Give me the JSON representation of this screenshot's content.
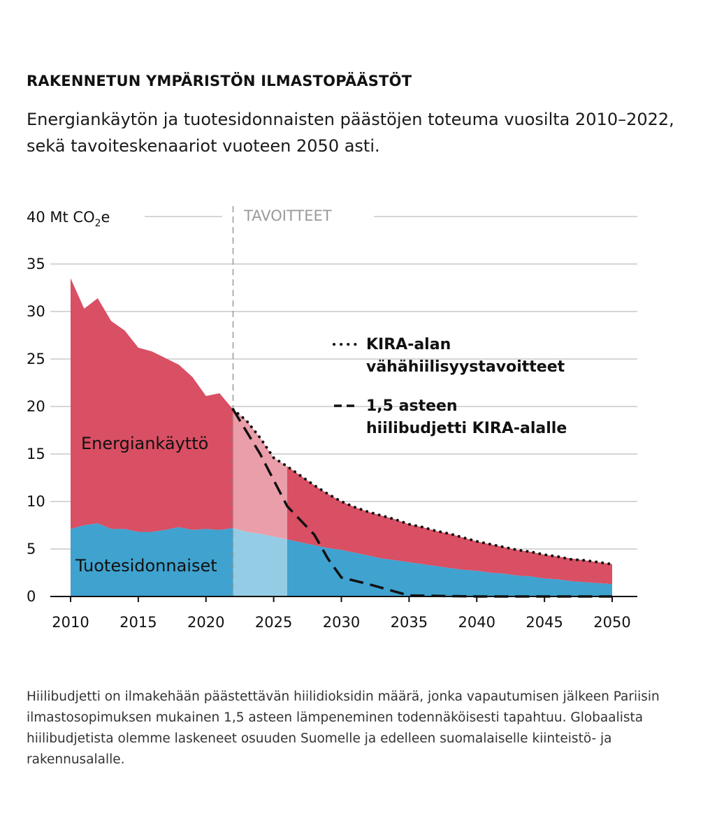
{
  "header": {
    "title": "RAKENNETUN YMPÄRISTÖN ILMASTOPÄÄSTÖT",
    "subtitle": "Energiankäytön ja tuotesidonnaisten päästöjen toteuma vuosilta 2010–2022, sekä tavoiteskenaariot vuoteen 2050 asti."
  },
  "caption": "Hiilibudjetti on ilmakehään päästettävän hiilidioksidin määrä, jonka vapautumisen jälkeen Pariisin ilmastosopimuksen mukainen 1,5 asteen lämpeneminen todennäköisesti tapahtuu. Globaalista hiilibudjetista olemme laskeneet osuuden Suomelle ja edelleen suomalaiselle kiinteistö- ja rakennusalalle.",
  "chart_data": {
    "type": "area",
    "y_unit_label": {
      "main": "40 Mt CO",
      "sub": "2",
      "tail": "e"
    },
    "ylim": [
      0,
      40
    ],
    "yticks": [
      0,
      5,
      10,
      15,
      20,
      25,
      30,
      35,
      40
    ],
    "xlim": [
      2010,
      2050
    ],
    "xticks": [
      2010,
      2015,
      2020,
      2025,
      2030,
      2035,
      2040,
      2045,
      2050
    ],
    "grid": true,
    "target_divider_year": 2022,
    "target_label": "TAVOITTEET",
    "area_labels": {
      "top": "Energiankäyttö",
      "bottom": "Tuotesidonnaiset"
    },
    "colors": {
      "energy": "#d94f63",
      "product": "#3fa2cf",
      "grid": "#c8c8c8",
      "line": "#111111"
    },
    "x": [
      2010,
      2011,
      2012,
      2013,
      2014,
      2015,
      2016,
      2017,
      2018,
      2019,
      2020,
      2021,
      2022,
      2023,
      2024,
      2025,
      2026,
      2027,
      2028,
      2029,
      2030,
      2031,
      2032,
      2033,
      2034,
      2035,
      2036,
      2037,
      2038,
      2039,
      2040,
      2041,
      2042,
      2043,
      2044,
      2045,
      2046,
      2047,
      2048,
      2049,
      2050
    ],
    "series": [
      {
        "name": "Tuotesidonnaiset",
        "values": [
          7.1,
          7.5,
          7.7,
          7.1,
          7.1,
          6.8,
          6.8,
          7.0,
          7.3,
          7.0,
          7.1,
          7.0,
          7.2,
          6.8,
          6.6,
          6.3,
          6.0,
          5.7,
          5.4,
          5.1,
          4.9,
          4.6,
          4.3,
          4.0,
          3.8,
          3.6,
          3.4,
          3.2,
          3.0,
          2.8,
          2.7,
          2.5,
          2.4,
          2.2,
          2.1,
          1.9,
          1.8,
          1.6,
          1.5,
          1.4,
          1.3
        ]
      },
      {
        "name": "Energiankäyttö",
        "values": [
          26.4,
          22.8,
          23.7,
          21.9,
          20.9,
          19.4,
          19.0,
          18.1,
          17.1,
          16.1,
          14.0,
          14.4,
          12.5,
          11.7,
          10.1,
          8.3,
          7.7,
          7.0,
          6.3,
          5.7,
          5.1,
          4.8,
          4.6,
          4.5,
          4.3,
          4.0,
          3.9,
          3.7,
          3.6,
          3.4,
          3.1,
          3.0,
          2.8,
          2.7,
          2.6,
          2.5,
          2.4,
          2.4,
          2.3,
          2.2,
          2.1
        ]
      }
    ],
    "lines": [
      {
        "name": "KIRA-alan vähähiilisyystavoitteet",
        "style": "dotted",
        "x": [
          2022,
          2023,
          2024,
          2025,
          2026,
          2027,
          2028,
          2029,
          2030,
          2031,
          2032,
          2033,
          2034,
          2035,
          2036,
          2037,
          2038,
          2039,
          2040,
          2041,
          2042,
          2043,
          2044,
          2045,
          2046,
          2047,
          2048,
          2049,
          2050
        ],
        "values": [
          19.7,
          18.5,
          16.7,
          14.6,
          13.7,
          12.7,
          11.7,
          10.8,
          10.0,
          9.4,
          8.9,
          8.5,
          8.1,
          7.6,
          7.3,
          6.9,
          6.6,
          6.2,
          5.8,
          5.5,
          5.2,
          4.9,
          4.7,
          4.4,
          4.2,
          3.9,
          3.8,
          3.6,
          3.4
        ]
      },
      {
        "name": "1,5 asteen hiilibudjetti KIRA-alalle",
        "style": "dashed",
        "x": [
          2022,
          2024,
          2026,
          2028,
          2029,
          2030,
          2032,
          2035,
          2040,
          2045,
          2050
        ],
        "values": [
          19.7,
          15.0,
          9.5,
          6.5,
          4.0,
          2.0,
          1.3,
          0.1,
          0.0,
          0.0,
          0.0
        ]
      }
    ],
    "legend": [
      {
        "line1": "KIRA-alan",
        "line2": "vähähiilisyystavoitteet",
        "style": "dotted"
      },
      {
        "line1": "1,5 asteen",
        "line2": "hiilibudjetti KIRA-alalle",
        "style": "dashed"
      }
    ]
  }
}
